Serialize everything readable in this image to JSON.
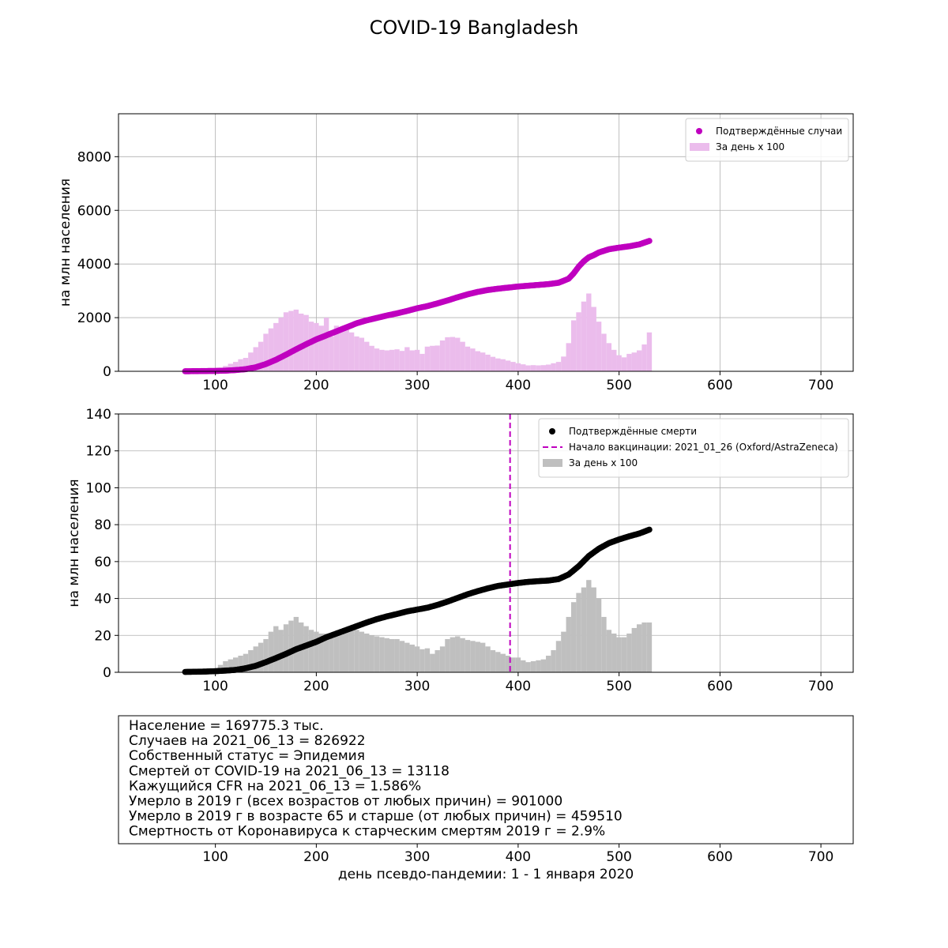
{
  "figure": {
    "title": "COVID-19 Bangladesh"
  },
  "colors": {
    "cases_point": "#bf00bf",
    "cases_bar": "#ebbcec",
    "deaths_point": "#000000",
    "deaths_bar": "#bfbfbf",
    "vaccination_line": "#bf00bf",
    "grid": "#b0b0b0"
  },
  "chart_data": [
    {
      "type": "bar+scatter",
      "title": "",
      "xlabel": "",
      "ylabel": "на млн населения",
      "xlim": [
        4,
        732
      ],
      "ylim": [
        0,
        9600
      ],
      "xticks": [
        100,
        200,
        300,
        400,
        500,
        600,
        700
      ],
      "yticks": [
        0,
        2000,
        4000,
        6000,
        8000
      ],
      "grid": true,
      "legend": {
        "placement": "top-right",
        "entries": [
          {
            "label": "Подтверждённые случаи",
            "kind": "point",
            "color": "#bf00bf"
          },
          {
            "label": "За день x 100",
            "kind": "bar",
            "color": "#ebbcec"
          }
        ]
      },
      "series": [
        {
          "name": "Подтверждённые случаи",
          "kind": "cumulative-points",
          "x": [
            70,
            80,
            90,
            100,
            110,
            120,
            130,
            140,
            150,
            160,
            170,
            180,
            190,
            200,
            210,
            220,
            230,
            240,
            250,
            260,
            270,
            280,
            290,
            300,
            310,
            320,
            330,
            340,
            350,
            360,
            370,
            380,
            390,
            400,
            410,
            420,
            430,
            440,
            450,
            455,
            460,
            465,
            470,
            475,
            480,
            490,
            500,
            510,
            520,
            530
          ],
          "y": [
            2,
            5,
            10,
            15,
            25,
            45,
            80,
            150,
            270,
            430,
            620,
            820,
            1010,
            1190,
            1340,
            1490,
            1640,
            1790,
            1900,
            1990,
            2080,
            2160,
            2250,
            2350,
            2430,
            2530,
            2640,
            2760,
            2870,
            2960,
            3030,
            3080,
            3120,
            3160,
            3190,
            3220,
            3250,
            3300,
            3450,
            3650,
            3900,
            4100,
            4250,
            4330,
            4430,
            4550,
            4610,
            4660,
            4730,
            4860
          ]
        },
        {
          "name": "За день x 100",
          "kind": "daily-bars",
          "x": [
            100,
            105,
            110,
            115,
            120,
            125,
            130,
            135,
            140,
            145,
            150,
            155,
            160,
            165,
            170,
            175,
            180,
            185,
            190,
            195,
            200,
            205,
            210,
            215,
            220,
            225,
            230,
            235,
            240,
            245,
            250,
            255,
            260,
            265,
            270,
            275,
            280,
            285,
            290,
            295,
            300,
            305,
            310,
            315,
            320,
            325,
            330,
            335,
            340,
            345,
            350,
            355,
            360,
            365,
            370,
            375,
            380,
            385,
            390,
            395,
            400,
            405,
            410,
            415,
            420,
            425,
            430,
            435,
            440,
            445,
            450,
            455,
            460,
            465,
            470,
            475,
            480,
            485,
            490,
            495,
            500,
            505,
            510,
            515,
            520,
            525,
            530
          ],
          "y": [
            80,
            120,
            200,
            280,
            350,
            450,
            500,
            700,
            900,
            1100,
            1400,
            1600,
            1800,
            2000,
            2200,
            2250,
            2300,
            2150,
            2100,
            1850,
            1800,
            1700,
            2000,
            1300,
            1700,
            1650,
            1550,
            1450,
            1300,
            1250,
            1100,
            950,
            850,
            800,
            780,
            800,
            820,
            760,
            900,
            780,
            800,
            650,
            920,
            950,
            960,
            1150,
            1270,
            1280,
            1250,
            1100,
            920,
            850,
            750,
            700,
            620,
            540,
            480,
            450,
            400,
            350,
            300,
            260,
            220,
            230,
            220,
            230,
            250,
            300,
            350,
            550,
            1050,
            1900,
            2200,
            2600,
            2900,
            2400,
            1850,
            1400,
            1050,
            800,
            600,
            520,
            650,
            700,
            780,
            1000,
            1450
          ]
        }
      ]
    },
    {
      "type": "bar+scatter",
      "title": "",
      "xlabel": "",
      "ylabel": "на млн населения",
      "xlim": [
        4,
        732
      ],
      "ylim": [
        0,
        140
      ],
      "xticks": [
        100,
        200,
        300,
        400,
        500,
        600,
        700
      ],
      "yticks": [
        0,
        20,
        40,
        60,
        80,
        100,
        120,
        140
      ],
      "grid": true,
      "vline": {
        "x": 392,
        "label": "Начало вакцинации: 2021_01_26 (Oxford/AstraZeneca)"
      },
      "legend": {
        "placement": "top-right",
        "entries": [
          {
            "label": "Подтверждённые смерти",
            "kind": "point",
            "color": "#000000"
          },
          {
            "label": "Начало вакцинации: 2021_01_26 (Oxford/AstraZeneca)",
            "kind": "dashed-line",
            "color": "#bf00bf"
          },
          {
            "label": "За день x 100",
            "kind": "bar",
            "color": "#bfbfbf"
          }
        ]
      },
      "series": [
        {
          "name": "Подтверждённые смерти",
          "kind": "cumulative-points",
          "x": [
            70,
            80,
            90,
            100,
            110,
            120,
            130,
            140,
            150,
            160,
            170,
            180,
            190,
            200,
            210,
            220,
            230,
            240,
            250,
            260,
            270,
            280,
            290,
            300,
            310,
            320,
            330,
            340,
            350,
            360,
            370,
            380,
            390,
            400,
            410,
            420,
            430,
            440,
            450,
            460,
            470,
            480,
            490,
            500,
            510,
            520,
            530
          ],
          "y": [
            0.2,
            0.3,
            0.4,
            0.6,
            0.9,
            1.3,
            2.2,
            3.5,
            5.5,
            7.7,
            10,
            12.5,
            14.5,
            16.5,
            19,
            21,
            23,
            25,
            27,
            28.8,
            30.3,
            31.6,
            33,
            34,
            35,
            36.5,
            38.3,
            40.3,
            42.3,
            44,
            45.5,
            46.8,
            47.6,
            48.4,
            49,
            49.4,
            49.7,
            50.5,
            53,
            57.5,
            63,
            67,
            70,
            72,
            73.7,
            75.2,
            77.3
          ]
        },
        {
          "name": "За день x 100",
          "kind": "daily-bars",
          "x": [
            100,
            105,
            110,
            115,
            120,
            125,
            130,
            135,
            140,
            145,
            150,
            155,
            160,
            165,
            170,
            175,
            180,
            185,
            190,
            195,
            200,
            205,
            210,
            215,
            220,
            225,
            230,
            235,
            240,
            245,
            250,
            255,
            260,
            265,
            270,
            275,
            280,
            285,
            290,
            295,
            300,
            305,
            310,
            315,
            320,
            325,
            330,
            335,
            340,
            345,
            350,
            355,
            360,
            365,
            370,
            375,
            380,
            385,
            390,
            395,
            400,
            405,
            410,
            415,
            420,
            425,
            430,
            435,
            440,
            445,
            450,
            455,
            460,
            465,
            470,
            475,
            480,
            485,
            490,
            495,
            500,
            505,
            510,
            515,
            520,
            525,
            530
          ],
          "y": [
            2,
            4,
            6,
            7,
            8,
            9,
            10,
            12,
            14,
            16,
            18,
            22,
            25,
            23,
            26,
            28,
            30,
            27,
            25,
            23,
            22,
            21,
            21,
            20,
            21,
            22,
            22,
            24,
            23,
            22,
            21,
            20,
            19.5,
            19,
            18.5,
            18,
            18,
            17,
            16,
            15,
            14,
            12.5,
            13,
            10,
            12,
            14,
            18,
            19,
            19.5,
            18.5,
            17.5,
            17,
            16.5,
            16,
            14,
            12,
            11,
            10,
            9,
            8,
            8,
            6.5,
            5.5,
            6,
            6.5,
            7,
            9,
            12,
            17,
            22,
            30,
            38,
            43,
            46,
            50,
            46,
            40,
            30,
            23,
            21,
            19,
            19,
            21,
            24,
            26,
            27,
            27
          ]
        }
      ]
    }
  ],
  "info_panel": {
    "lines": [
      "Население = 169775.3 тыс.",
      "Случаев на 2021_06_13 = 826922",
      "Собственный статус = Эпидемия",
      "Смертей от COVID-19 на 2021_06_13 = 13118",
      "Кажущийся CFR на 2021_06_13 = 1.586%",
      "Умерло в 2019 г (всех возрастов от любых причин) = 901000",
      "Умерло в 2019 г в возрасте 65 и старше (от любых причин) = 459510",
      "Смертность от Коронавируса к старческим смертям 2019 г = 2.9%"
    ],
    "xticks": [
      100,
      200,
      300,
      400,
      500,
      600,
      700
    ],
    "xlabel": "день псевдо-пандемии: 1 - 1 января 2020"
  }
}
